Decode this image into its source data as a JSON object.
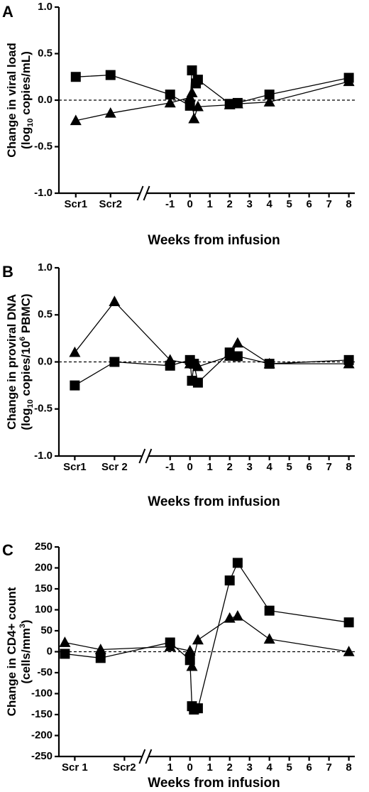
{
  "chart_data": [
    {
      "type": "line",
      "panel": "A",
      "ylabel_line1": "Change in viral load",
      "ylabel_line2_pre": "(log",
      "ylabel_line2_sub": "10",
      "ylabel_line2_post": " copies/mL)",
      "xlabel": "Weeks from infusion",
      "ylim": [
        -1.0,
        1.0
      ],
      "yticks": [
        "1.0",
        "0.5",
        "0.0",
        "-0.5",
        "-1.0"
      ],
      "ytick_values": [
        1.0,
        0.5,
        0.0,
        -0.5,
        -1.0
      ],
      "xticks": [
        {
          "label": "Scr1",
          "x": -5.75
        },
        {
          "label": "Scr2",
          "x": -4.0
        },
        {
          "label": "-1",
          "x": -1
        },
        {
          "label": "0",
          "x": 0
        },
        {
          "label": "1",
          "x": 1
        },
        {
          "label": "2",
          "x": 2
        },
        {
          "label": "3",
          "x": 3
        },
        {
          "label": "4",
          "x": 4
        },
        {
          "label": "5",
          "x": 5
        },
        {
          "label": "6",
          "x": 6
        },
        {
          "label": "7",
          "x": 7
        },
        {
          "label": "8",
          "x": 8
        }
      ],
      "xlim": [
        -6.6,
        8.3
      ],
      "axis_break_x": -2.4,
      "series": [
        {
          "marker": "square",
          "x": [
            -5.75,
            -4.0,
            -1,
            0,
            0.1,
            0.3,
            0.4,
            2,
            2.4,
            4,
            8
          ],
          "y": [
            0.25,
            0.27,
            0.06,
            -0.06,
            0.32,
            0.18,
            0.22,
            -0.04,
            -0.03,
            0.06,
            0.24
          ]
        },
        {
          "marker": "triangle",
          "x": [
            -5.75,
            -4.0,
            -1,
            0,
            0.1,
            0.2,
            0.4,
            2,
            2.4,
            4,
            8
          ],
          "y": [
            -0.22,
            -0.14,
            -0.03,
            0.03,
            0.08,
            -0.2,
            -0.07,
            -0.05,
            -0.04,
            -0.02,
            0.2
          ]
        }
      ]
    },
    {
      "type": "line",
      "panel": "B",
      "ylabel_line1": "Change in proviral DNA",
      "ylabel_line2_pre": "(log",
      "ylabel_line2_sub": "10",
      "ylabel_line2_mid": " copies/10",
      "ylabel_line2_sup": "6",
      "ylabel_line2_post": " PBMC)",
      "xlabel": "Weeks from infusion",
      "ylim": [
        -1.0,
        1.0
      ],
      "yticks": [
        "1.0",
        "0.5",
        "0.0",
        "-0.5",
        "-1.0"
      ],
      "ytick_values": [
        1.0,
        0.5,
        0.0,
        -0.5,
        -1.0
      ],
      "xticks": [
        {
          "label": "Scr1",
          "x": -5.8
        },
        {
          "label": "Scr 2",
          "x": -3.8
        },
        {
          "label": "-1",
          "x": -1
        },
        {
          "label": "0",
          "x": 0
        },
        {
          "label": "1",
          "x": 1
        },
        {
          "label": "2",
          "x": 2
        },
        {
          "label": "3",
          "x": 3
        },
        {
          "label": "4",
          "x": 4
        },
        {
          "label": "5",
          "x": 5
        },
        {
          "label": "6",
          "x": 6
        },
        {
          "label": "7",
          "x": 7
        },
        {
          "label": "8",
          "x": 8
        }
      ],
      "xlim": [
        -6.6,
        8.3
      ],
      "axis_break_x": -2.3,
      "series": [
        {
          "marker": "square",
          "x": [
            -5.8,
            -3.8,
            -1,
            0,
            0.1,
            0.2,
            0.4,
            2,
            2.4,
            4,
            8
          ],
          "y": [
            -0.25,
            0.0,
            -0.04,
            0.02,
            -0.2,
            -0.02,
            -0.22,
            0.1,
            0.06,
            -0.02,
            0.02
          ]
        },
        {
          "marker": "triangle",
          "x": [
            -5.8,
            -3.8,
            -1,
            0,
            0.2,
            0.4,
            2,
            2.4,
            4,
            8
          ],
          "y": [
            0.1,
            0.64,
            0.02,
            -0.02,
            -0.02,
            -0.05,
            0.06,
            0.2,
            -0.02,
            -0.02
          ]
        }
      ]
    },
    {
      "type": "line",
      "panel": "C",
      "ylabel_line1": "Change in CD4+ count",
      "ylabel_line2_pre": "(cells/mm",
      "ylabel_line2_sup": "3",
      "ylabel_line2_post": ")",
      "xlabel": "Weeks from infusion",
      "ylim": [
        -250,
        250
      ],
      "yticks": [
        "250",
        "200",
        "150",
        "100",
        "50",
        "0",
        "-50",
        "-100",
        "-150",
        "-200",
        "-250"
      ],
      "ytick_values": [
        250,
        200,
        150,
        100,
        50,
        0,
        -50,
        -100,
        -150,
        -200,
        -250
      ],
      "xticks": [
        {
          "label": "Scr 1",
          "x": -5.8
        },
        {
          "label": "Scr2",
          "x": -3.3
        },
        {
          "label": "1",
          "x": -1
        },
        {
          "label": "0",
          "x": 0
        },
        {
          "label": "1",
          "x": 1
        },
        {
          "label": "2",
          "x": 2
        },
        {
          "label": "3",
          "x": 3
        },
        {
          "label": "4",
          "x": 4
        },
        {
          "label": "5",
          "x": 5
        },
        {
          "label": "6",
          "x": 6
        },
        {
          "label": "7",
          "x": 7
        },
        {
          "label": "8",
          "x": 8
        }
      ],
      "xlim": [
        -6.6,
        8.3
      ],
      "axis_break_x": -2.3,
      "series": [
        {
          "marker": "square",
          "x": [
            -6.3,
            -4.5,
            -1,
            0,
            0.1,
            0.2,
            0.4,
            2,
            2.4,
            4,
            8
          ],
          "y": [
            -5,
            -15,
            22,
            -20,
            -130,
            -138,
            -135,
            170,
            212,
            98,
            70
          ]
        },
        {
          "marker": "triangle",
          "x": [
            -6.3,
            -4.5,
            -1,
            0,
            0.1,
            0.4,
            2,
            2.4,
            4,
            8
          ],
          "y": [
            22,
            5,
            12,
            2,
            -35,
            28,
            80,
            85,
            30,
            0
          ]
        }
      ]
    }
  ]
}
